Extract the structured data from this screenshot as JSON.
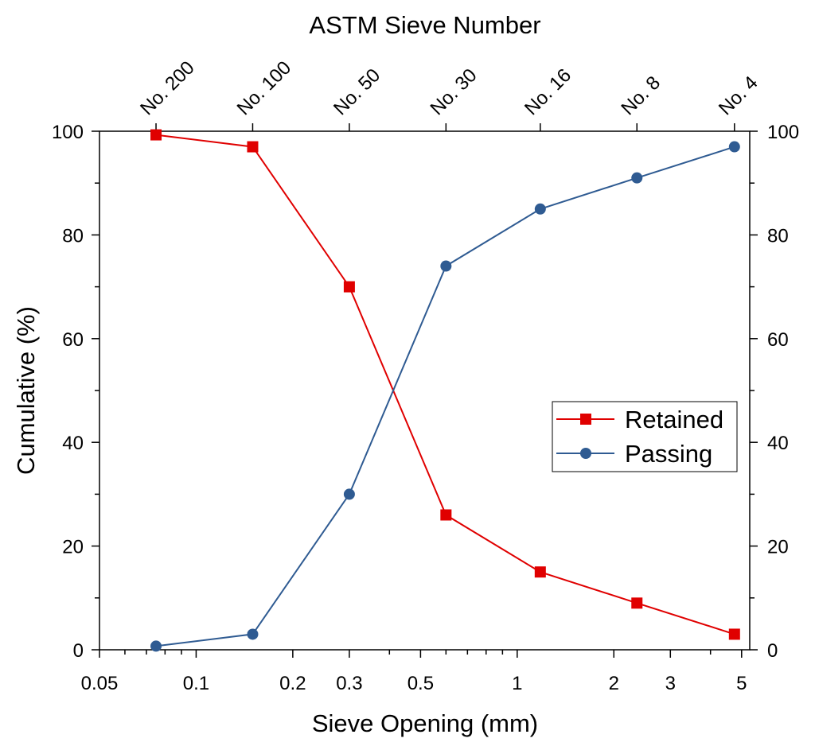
{
  "chart_data": {
    "type": "line",
    "title": "ASTM Sieve Number",
    "xlabel": "Sieve Opening (mm)",
    "ylabel": "Cumulative (%)",
    "x_scale": "log",
    "xlim": [
      0.05,
      5.3
    ],
    "ylim": [
      0,
      100
    ],
    "x_ticks": [
      0.05,
      0.1,
      0.2,
      0.3,
      0.5,
      1,
      2,
      3,
      5
    ],
    "x_tick_labels": [
      "0.05",
      "0.1",
      "0.2",
      "0.3",
      "0.5",
      "1",
      "2",
      "3",
      "5"
    ],
    "y_ticks": [
      0,
      20,
      40,
      60,
      80,
      100
    ],
    "y_tick_labels": [
      "0",
      "20",
      "40",
      "60",
      "80",
      "100"
    ],
    "top_axis": {
      "title": "ASTM Sieve Number",
      "positions": [
        0.075,
        0.15,
        0.3,
        0.6,
        1.18,
        2.36,
        4.75
      ],
      "labels": [
        "No. 200",
        "No. 100",
        "No. 50",
        "No. 30",
        "No. 16",
        "No. 8",
        "No. 4"
      ]
    },
    "x": [
      0.075,
      0.15,
      0.3,
      0.6,
      1.18,
      2.36,
      4.75
    ],
    "series": [
      {
        "name": "Retained",
        "marker": "square",
        "color": "#e00000",
        "values": [
          99.3,
          97,
          70,
          26,
          15,
          9,
          3
        ]
      },
      {
        "name": "Passing",
        "marker": "circle",
        "color": "#2f5b92",
        "values": [
          0.7,
          3,
          30,
          74,
          85,
          91,
          97
        ]
      }
    ],
    "legend": {
      "placement": "right",
      "entries": [
        "Retained",
        "Passing"
      ]
    },
    "grid": false
  }
}
